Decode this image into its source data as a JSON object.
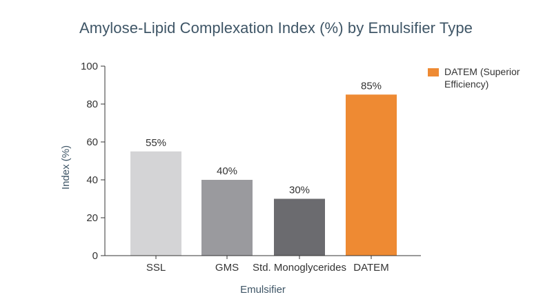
{
  "chart_data": {
    "type": "bar",
    "title": "Amylose-Lipid Complexation Index (%) by Emulsifier Type",
    "xlabel": "Emulsifier",
    "ylabel": "Index (%)",
    "ylim": [
      0,
      100
    ],
    "yticks": [
      "0",
      "20",
      "40",
      "60",
      "80",
      "100"
    ],
    "categories": [
      "SSL",
      "GMS",
      "Std. Monoglycerides",
      "DATEM"
    ],
    "values": [
      55,
      40,
      30,
      85
    ],
    "data_labels": [
      "55%",
      "40%",
      "30%",
      "85%"
    ],
    "colors": [
      "#d4d4d6",
      "#9a9a9e",
      "#6b6b6f",
      "#ee8a33"
    ],
    "legend": {
      "position": "top-right",
      "entries": [
        {
          "label": "DATEM (Superior Efficiency)",
          "color": "#ee8a33"
        }
      ]
    },
    "grid": false
  }
}
